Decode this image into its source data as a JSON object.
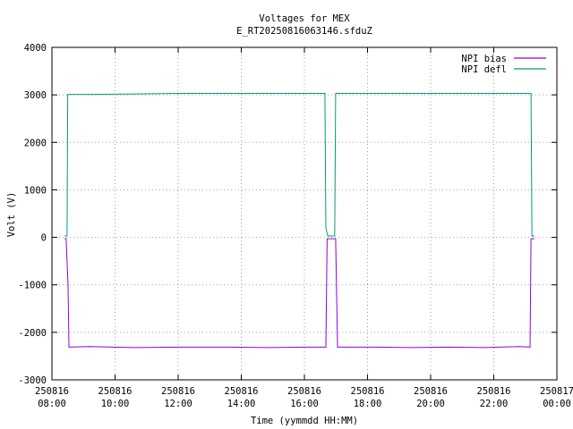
{
  "chart_data": {
    "type": "line",
    "title": "Voltages for MEX",
    "subtitle": "E_RT20250816063146.sfduZ",
    "x_label": "Time (yymmdd HH:MM)",
    "y_label": "Volt (V)",
    "xlim": [
      8,
      24
    ],
    "xticks": [
      {
        "value": 8,
        "label": "250816 08:00"
      },
      {
        "value": 10,
        "label": "250816 10:00"
      },
      {
        "value": 12,
        "label": "250816 12:00"
      },
      {
        "value": 14,
        "label": "250816 14:00"
      },
      {
        "value": 16,
        "label": "250816 16:00"
      },
      {
        "value": 18,
        "label": "250816 18:00"
      },
      {
        "value": 20,
        "label": "250816 20:00"
      },
      {
        "value": 22,
        "label": "250816 22:00"
      },
      {
        "value": 24,
        "label": "250817 00:00"
      }
    ],
    "ylim": [
      -3000,
      4000
    ],
    "yticks": [
      -3000,
      -2000,
      -1000,
      0,
      1000,
      2000,
      3000,
      4000
    ],
    "grid": true,
    "legend": "top-right",
    "series": [
      {
        "name": "NPI bias",
        "color": "#9400d3",
        "x": [
          8.4,
          8.45,
          8.51,
          8.54,
          9.19,
          10.61,
          12.03,
          13.45,
          14.87,
          16.0,
          16.68,
          16.72,
          16.99,
          17.05,
          18.27,
          19.4,
          20.54,
          21.67,
          22.81,
          23.15,
          23.18,
          23.29
        ],
        "values": [
          -30,
          -30,
          -1000,
          -2310,
          -2300,
          -2320,
          -2310,
          -2310,
          -2320,
          -2310,
          -2310,
          -30,
          -30,
          -2310,
          -2310,
          -2320,
          -2310,
          -2320,
          -2300,
          -2310,
          -30,
          -30
        ]
      },
      {
        "name": "NPI defl",
        "color": "#009e73",
        "x": [
          8.4,
          8.48,
          8.5,
          9.19,
          10.61,
          12.03,
          13.45,
          14.87,
          16.0,
          16.65,
          16.68,
          16.74,
          16.96,
          16.99,
          17.05,
          18.27,
          19.4,
          20.54,
          21.67,
          22.81,
          23.18,
          23.21,
          23.29
        ],
        "values": [
          30,
          30,
          3010,
          3010,
          3020,
          3030,
          3030,
          3030,
          3030,
          3030,
          200,
          30,
          30,
          3030,
          3030,
          3030,
          3030,
          3030,
          3030,
          3030,
          3030,
          30,
          30
        ]
      }
    ]
  }
}
